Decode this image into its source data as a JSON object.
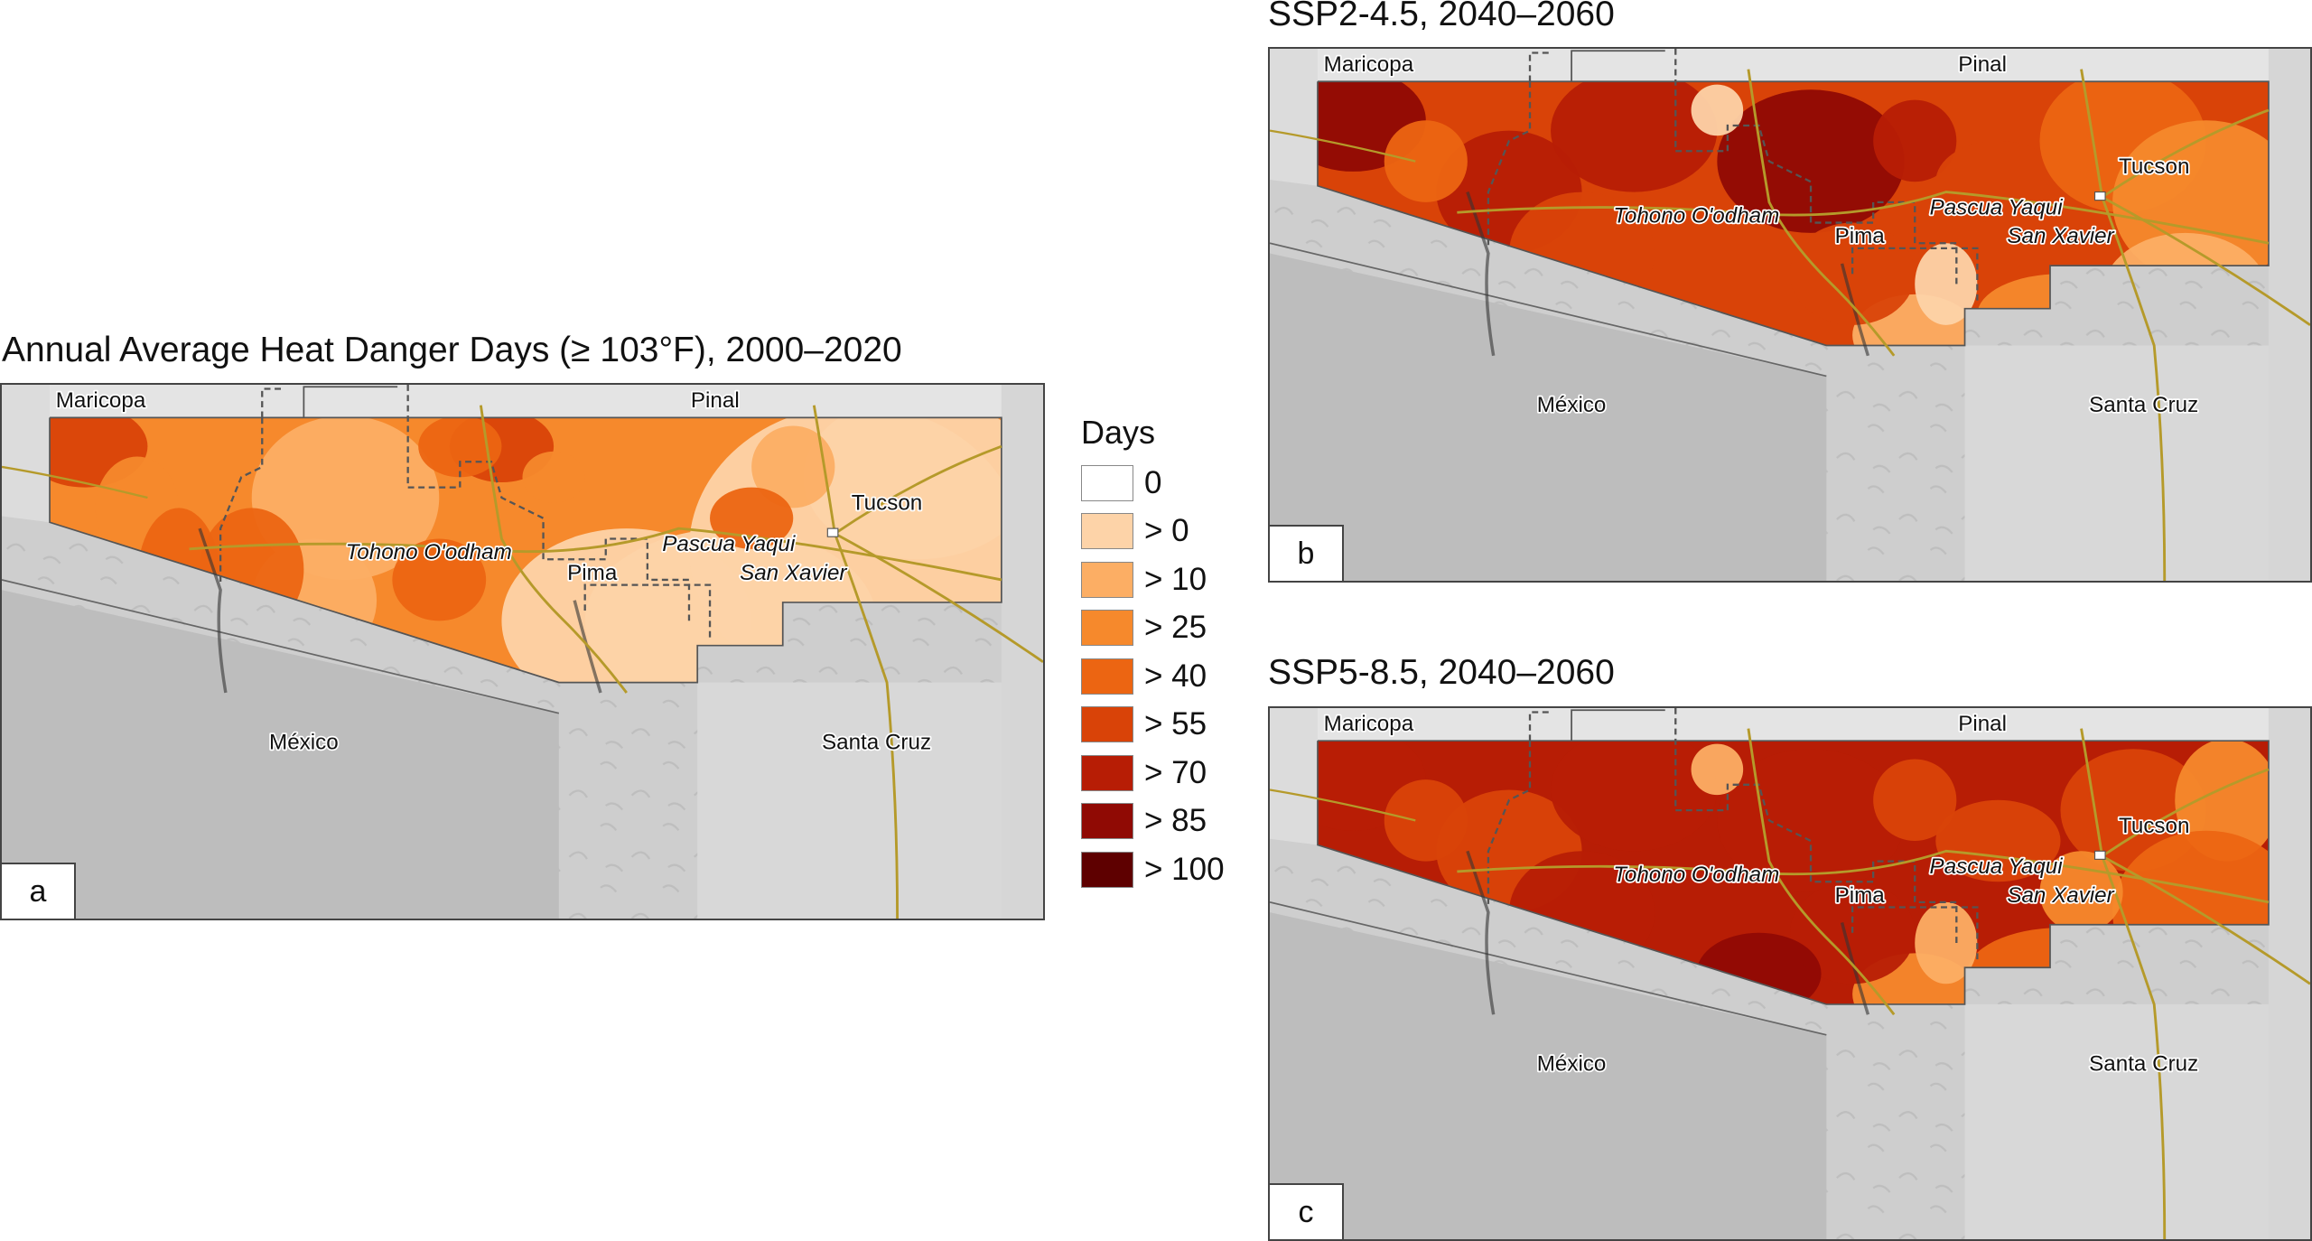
{
  "titles": {
    "a": "Annual Average Heat Danger Days (≥ 103°F), 2000–2020",
    "b": "SSP2-4.5, 2040–2060",
    "c": "SSP5-8.5, 2040–2060"
  },
  "panel_letters": {
    "a": "a",
    "b": "b",
    "c": "c"
  },
  "legend": {
    "title": "Days",
    "items": [
      {
        "label": "0",
        "color": "#ffffff"
      },
      {
        "label": "> 0",
        "color": "#fdd3a8"
      },
      {
        "label": "> 10",
        "color": "#fcae64"
      },
      {
        "label": "> 25",
        "color": "#f6892c"
      },
      {
        "label": "> 40",
        "color": "#ec6512"
      },
      {
        "label": "> 55",
        "color": "#d94308"
      },
      {
        "label": "> 70",
        "color": "#b71d05"
      },
      {
        "label": "> 85",
        "color": "#900a04"
      },
      {
        "label": "> 100",
        "color": "#5e0000"
      }
    ]
  },
  "places": {
    "maricopa": "Maricopa",
    "pinal": "Pinal",
    "tucson": "Tucson",
    "tohono": "Tohono O'odham",
    "pima": "Pima",
    "pascua": "Pascua Yaqui",
    "sanxavier": "San Xavier",
    "mexico": "México",
    "santacruz": "Santa Cruz"
  }
}
